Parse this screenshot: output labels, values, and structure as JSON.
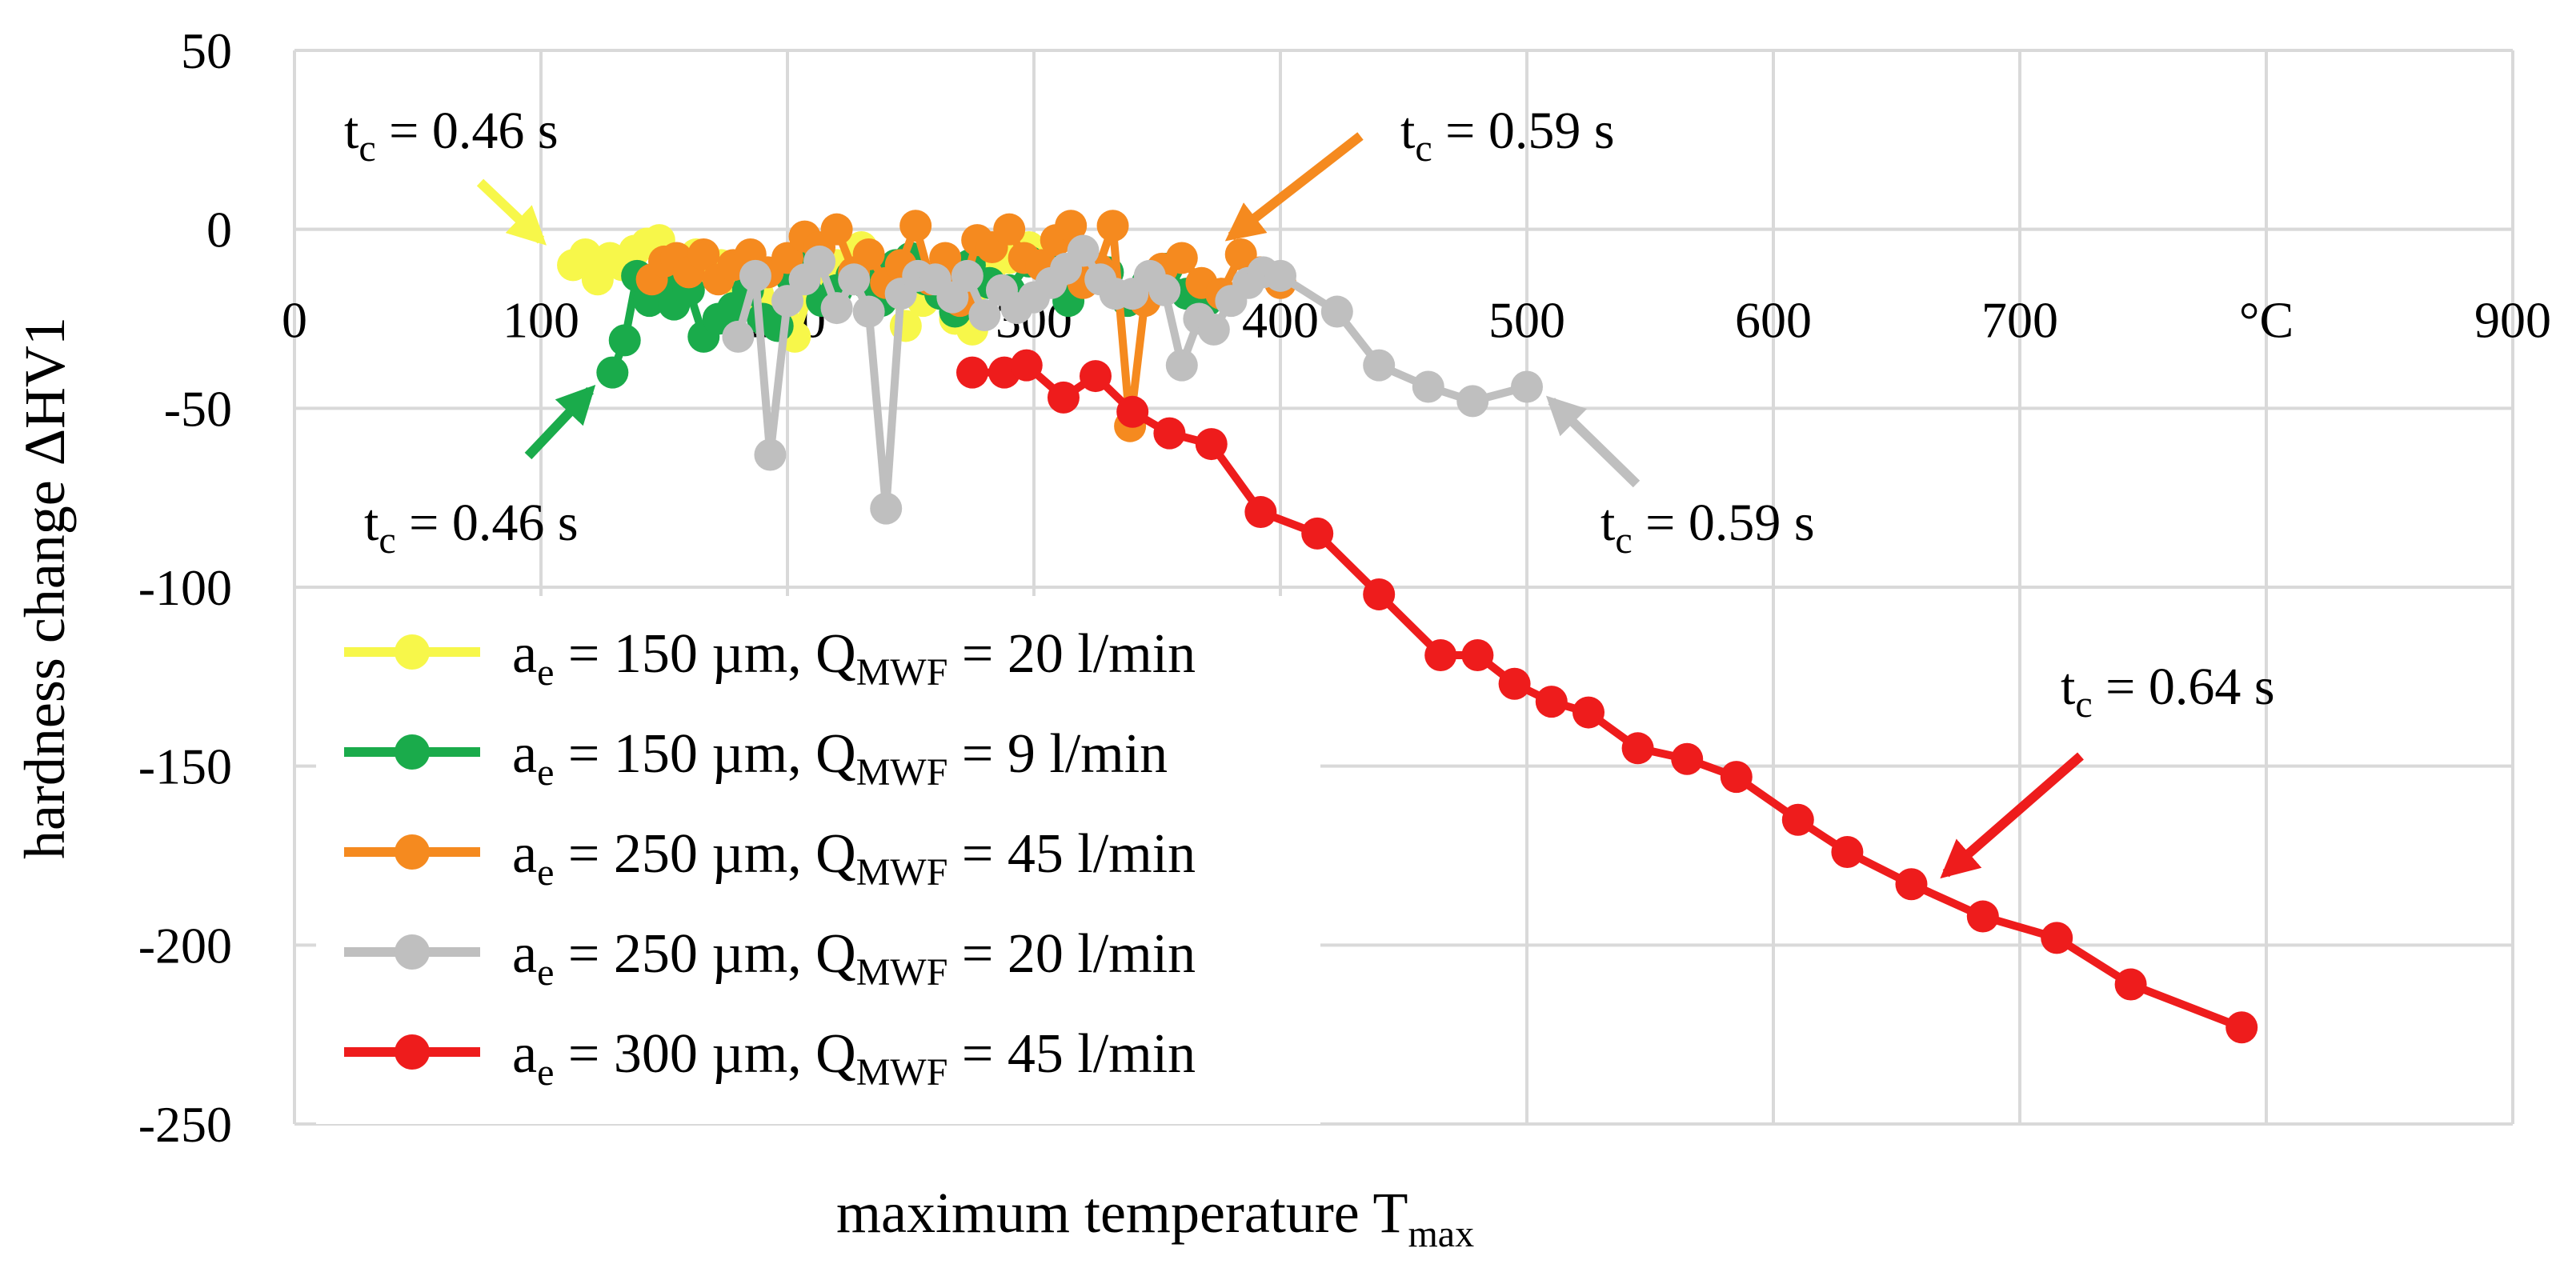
{
  "chart_data": {
    "type": "line",
    "title": "",
    "xlabel": {
      "main": "maximum temperature T",
      "sub": "max"
    },
    "ylabel": "hardness change ΔHV1",
    "xlim": [
      0,
      900
    ],
    "ylim": [
      -250,
      50
    ],
    "x_ticks": [
      "0",
      "100",
      "200",
      "300",
      "400",
      "500",
      "600",
      "700",
      "°C",
      "900"
    ],
    "y_ticks": [
      "50",
      "0",
      "-50",
      "-100",
      "-150",
      "-200",
      "-250"
    ],
    "grid": true,
    "legend_position": "lower-left",
    "series": [
      {
        "name": "a_e = 150 µm, Q_MWF = 20 l/min",
        "legend": {
          "a": "a",
          "a_sub": "e",
          "mid": " = 150 µm, Q",
          "q_sub": "MWF",
          "end": " = 20 l/min"
        },
        "color": "#f7f74a",
        "x": [
          113,
          118,
          123,
          128,
          133,
          138,
          143,
          148,
          153,
          158,
          163,
          168,
          173,
          178,
          183,
          188,
          193,
          198,
          203,
          210,
          220,
          230,
          240,
          248,
          255,
          262,
          268,
          275,
          282,
          290,
          298,
          305
        ],
        "y": [
          -10,
          -7,
          -14,
          -8,
          -10,
          -6,
          -4,
          -3,
          -9,
          -13,
          -7,
          -12,
          -10,
          -14,
          -20,
          -18,
          -22,
          -24,
          -30,
          -16,
          -10,
          -5,
          -12,
          -27,
          -20,
          -18,
          -25,
          -28,
          -12,
          -8,
          -5,
          -10
        ]
      },
      {
        "name": "a_e = 150 µm, Q_MWF = 9 l/min",
        "legend": {
          "a": "a",
          "a_sub": "e",
          "mid": " = 150 µm, Q",
          "q_sub": "MWF",
          "end": " = 9 l/min"
        },
        "color": "#1aab4b",
        "x": [
          129,
          134,
          139,
          144,
          149,
          154,
          160,
          166,
          172,
          178,
          184,
          190,
          196,
          202,
          208,
          214,
          220,
          226,
          232,
          238,
          244,
          250,
          256,
          262,
          268,
          274,
          282,
          290,
          298,
          306,
          314,
          322,
          330,
          338,
          346,
          354,
          362,
          370
        ],
        "y": [
          -40,
          -31,
          -13,
          -20,
          -15,
          -21,
          -17,
          -30,
          -25,
          -22,
          -17,
          -25,
          -27,
          -14,
          -8,
          -20,
          -17,
          -13,
          -15,
          -20,
          -10,
          -8,
          -14,
          -18,
          -23,
          -10,
          -15,
          -17,
          -9,
          -11,
          -20,
          -14,
          -12,
          -20,
          -15,
          -11,
          -18,
          -20
        ]
      },
      {
        "name": "a_e = 250 µm, Q_MWF = 45 l/min",
        "legend": {
          "a": "a",
          "a_sub": "e",
          "mid": " = 250 µm, Q",
          "q_sub": "MWF",
          "end": " = 45 l/min"
        },
        "color": "#f58a1f",
        "x": [
          145,
          150,
          155,
          160,
          166,
          172,
          178,
          185,
          192,
          200,
          207,
          213,
          220,
          227,
          233,
          240,
          246,
          252,
          258,
          264,
          270,
          277,
          283,
          290,
          296,
          303,
          309,
          315,
          320,
          326,
          332,
          339,
          345,
          352,
          360,
          368,
          376,
          384,
          392,
          400
        ],
        "y": [
          -14,
          -9,
          -8,
          -12,
          -7,
          -14,
          -10,
          -7,
          -12,
          -8,
          -2,
          -5,
          0,
          -12,
          -7,
          -15,
          -10,
          1,
          -14,
          -8,
          -20,
          -3,
          -5,
          0,
          -8,
          -10,
          -3,
          1,
          -15,
          -11,
          1,
          -55,
          -20,
          -11,
          -8,
          -15,
          -18,
          -7,
          -12,
          -15
        ]
      },
      {
        "name": "a_e = 250 µm, Q_MWF = 20 l/min",
        "legend": {
          "a": "a",
          "a_sub": "e",
          "mid": " = 250 µm, Q",
          "q_sub": "MWF",
          "end": " = 20 l/min"
        },
        "color": "#bfbfbf",
        "x": [
          180,
          187,
          193,
          200,
          207,
          213,
          220,
          227,
          233,
          240,
          246,
          253,
          260,
          267,
          273,
          280,
          287,
          293,
          300,
          307,
          313,
          320,
          327,
          333,
          340,
          347,
          353,
          360,
          367,
          373,
          380,
          387,
          393,
          400,
          423,
          440,
          460,
          478,
          500
        ],
        "y": [
          -30,
          -13,
          -63,
          -20,
          -14,
          -9,
          -22,
          -14,
          -23,
          -78,
          -18,
          -13,
          -14,
          -19,
          -13,
          -24,
          -17,
          -22,
          -19,
          -15,
          -11,
          -6,
          -14,
          -18,
          -18,
          -13,
          -17,
          -38,
          -25,
          -28,
          -20,
          -15,
          -12,
          -13,
          -23,
          -38,
          -44,
          -48,
          -44
        ]
      },
      {
        "name": "a_e = 300 µm, Q_MWF = 45 l/min",
        "legend": {
          "a": "a",
          "a_sub": "e",
          "mid": " = 300 µm, Q",
          "q_sub": "MWF",
          "end": " = 45 l/min"
        },
        "color": "#ee1c1c",
        "x": [
          275,
          288,
          297,
          312,
          325,
          340,
          355,
          372,
          392,
          415,
          440,
          465,
          480,
          495,
          510,
          525,
          545,
          565,
          585,
          610,
          630,
          656,
          685,
          715,
          745,
          790
        ],
        "y": [
          -40,
          -40,
          -38,
          -47,
          -41,
          -51,
          -57,
          -60,
          -79,
          -85,
          -102,
          -119,
          -119,
          -127,
          -132,
          -135,
          -145,
          -148,
          -153,
          -165,
          -174,
          -183,
          -192,
          -198,
          -211,
          -223
        ]
      }
    ],
    "annotations": [
      {
        "text": "0.46 s",
        "series_index": 0,
        "arrow_to": [
          100,
          -3
        ]
      },
      {
        "text": "0.46 s",
        "series_index": 1,
        "arrow_to": [
          120,
          -45
        ]
      },
      {
        "text": "0.59 s",
        "series_index": 2,
        "arrow_to": [
          380,
          -2
        ]
      },
      {
        "text": "0.59 s",
        "series_index": 3,
        "arrow_to": [
          510,
          -48
        ]
      },
      {
        "text": "0.64 s",
        "series_index": 4,
        "arrow_to": [
          670,
          -180
        ]
      }
    ],
    "annotation_prefix": {
      "main": "t",
      "sub": "c",
      "eq": " = "
    }
  }
}
